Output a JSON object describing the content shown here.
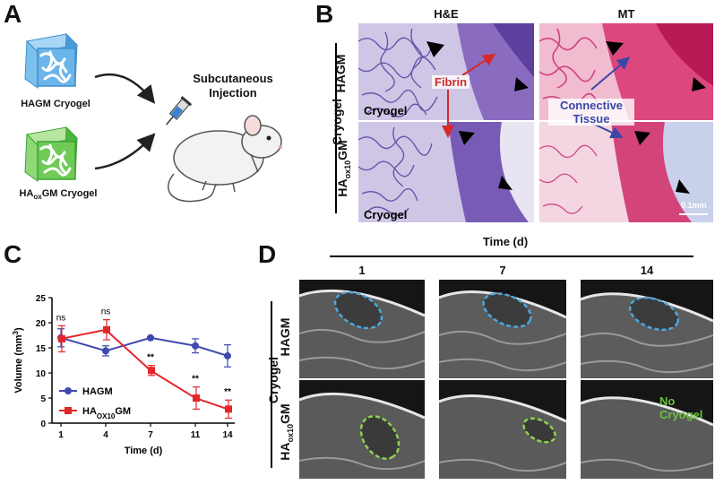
{
  "panels": {
    "a": "A",
    "b": "B",
    "c": "C",
    "d": "D"
  },
  "panelA": {
    "cryogel_top": "HAGM Cryogel",
    "cryogel_bottom_prefix": "HA",
    "cryogel_bottom_sub": "ox",
    "cryogel_bottom_suffix": "GM Cryogel",
    "injection_line1": "Subcutaneous",
    "injection_line2": "Injection",
    "icons": [
      "hagm-cryogel-cube-icon",
      "haoxgm-cryogel-cube-icon",
      "syringe-icon",
      "mouse-icon"
    ],
    "colors": {
      "hagm": "#5aa9e6",
      "haoxgm": "#5cc24a"
    }
  },
  "panelB": {
    "col1": "H&E",
    "col2": "MT",
    "group": "Cryogel",
    "row1": "HAGM",
    "row2_prefix": "HA",
    "row2_sub": "ox10",
    "row2_suffix": "GM",
    "tile_label": "Cryogel",
    "fibrin": "Fibrin",
    "connective_line1": "Connective",
    "connective_line2": "Tissue",
    "scale": "0.1mm",
    "colors": {
      "he": "#6a4aa8",
      "mt": "#d0306a",
      "fibrin": "#d42a2a",
      "connective": "#3a46a8"
    }
  },
  "panelD": {
    "time_title": "Time (d)",
    "times": [
      "1",
      "7",
      "14"
    ],
    "group": "Cryogel",
    "row1": "HAGM",
    "row2_prefix": "HA",
    "row2_sub": "ox10",
    "row2_suffix": "GM",
    "no_cryogel": "No Cryogel",
    "colors": {
      "hagm": "#4aa8e0",
      "haoxgm": "#8fd14f",
      "no_cryogel": "#6bc23c"
    }
  },
  "chart_data": {
    "type": "line",
    "x": [
      1,
      4,
      7,
      11,
      14
    ],
    "xticks": [
      "1",
      "4",
      "7",
      "11",
      "14"
    ],
    "xlabel": "Time (d)",
    "ylabel_prefix": "Volume (mm",
    "ylabel_sup": "3",
    "ylabel_suffix": ")",
    "ylim": [
      0,
      25
    ],
    "yticks": [
      "0",
      "5",
      "10",
      "15",
      "20",
      "25"
    ],
    "series": [
      {
        "name": "HAGM",
        "name_prefix": "HAGM",
        "name_sub": "",
        "name_suffix": "",
        "color": "#3f48b0",
        "marker": "circle",
        "values": [
          17.0,
          14.4,
          17.0,
          15.4,
          13.4
        ],
        "errors": [
          1.8,
          1.0,
          0.2,
          1.4,
          2.2
        ]
      },
      {
        "name": "HAOX10GM",
        "name_prefix": "HA",
        "name_sub": "OX10",
        "name_suffix": "GM",
        "color": "#e4262a",
        "marker": "square",
        "values": [
          16.8,
          18.6,
          10.5,
          5.0,
          2.8
        ],
        "errors": [
          2.6,
          2.0,
          1.0,
          2.2,
          1.8
        ]
      }
    ],
    "annotations": [
      {
        "x": 1,
        "text": "ns"
      },
      {
        "x": 4,
        "text": "ns"
      },
      {
        "x": 7,
        "text": "**"
      },
      {
        "x": 11,
        "text": "**"
      },
      {
        "x": 14,
        "text": "**"
      }
    ],
    "legend_position": "bottom-left",
    "grid": false
  }
}
